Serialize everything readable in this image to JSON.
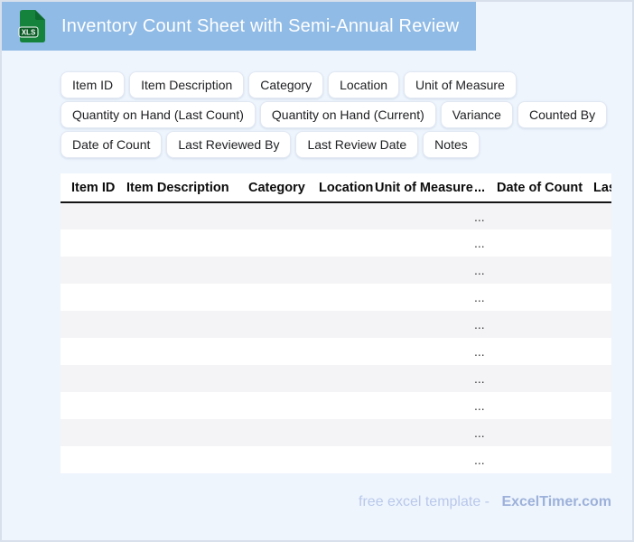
{
  "header": {
    "title": "Inventory Count Sheet with Semi-Annual Review",
    "file_badge": "XLS"
  },
  "chips": {
    "rows": [
      [
        "Item ID",
        "Item Description",
        "Category",
        "Location",
        "Unit of Measure"
      ],
      [
        "Quantity on Hand (Last Count)",
        "Quantity on Hand (Current)",
        "Variance",
        "Counted By"
      ],
      [
        "Date of Count",
        "Last Reviewed By",
        "Last Review Date",
        "Notes"
      ]
    ]
  },
  "table": {
    "headers": [
      "Item ID",
      "Item Description",
      "Category",
      "Location",
      "Unit of Measure",
      "...",
      "Date of Count",
      "Last Reviewed By"
    ],
    "rows": [
      [
        "",
        "",
        "",
        "",
        "",
        "...",
        "",
        ""
      ],
      [
        "",
        "",
        "",
        "",
        "",
        "...",
        "",
        ""
      ],
      [
        "",
        "",
        "",
        "",
        "",
        "...",
        "",
        ""
      ],
      [
        "",
        "",
        "",
        "",
        "",
        "...",
        "",
        ""
      ],
      [
        "",
        "",
        "",
        "",
        "",
        "...",
        "",
        ""
      ],
      [
        "",
        "",
        "",
        "",
        "",
        "...",
        "",
        ""
      ],
      [
        "",
        "",
        "",
        "",
        "",
        "...",
        "",
        ""
      ],
      [
        "",
        "",
        "",
        "",
        "",
        "...",
        "",
        ""
      ],
      [
        "",
        "",
        "",
        "",
        "",
        "...",
        "",
        ""
      ],
      [
        "",
        "",
        "",
        "",
        "",
        "...",
        "",
        ""
      ]
    ]
  },
  "footer": {
    "label": "free excel template -",
    "brand": "ExcelTimer.com"
  },
  "colors": {
    "titlebar_blue": "#90bbe6",
    "page_background": "#eef5fd",
    "page_border": "#d8e0ec",
    "icon_green": "#15833c",
    "icon_band_green": "#0a5c24",
    "row_stripe": "#f4f4f6",
    "footer_label": "#b9c8eb",
    "footer_brand": "#9db1da"
  }
}
